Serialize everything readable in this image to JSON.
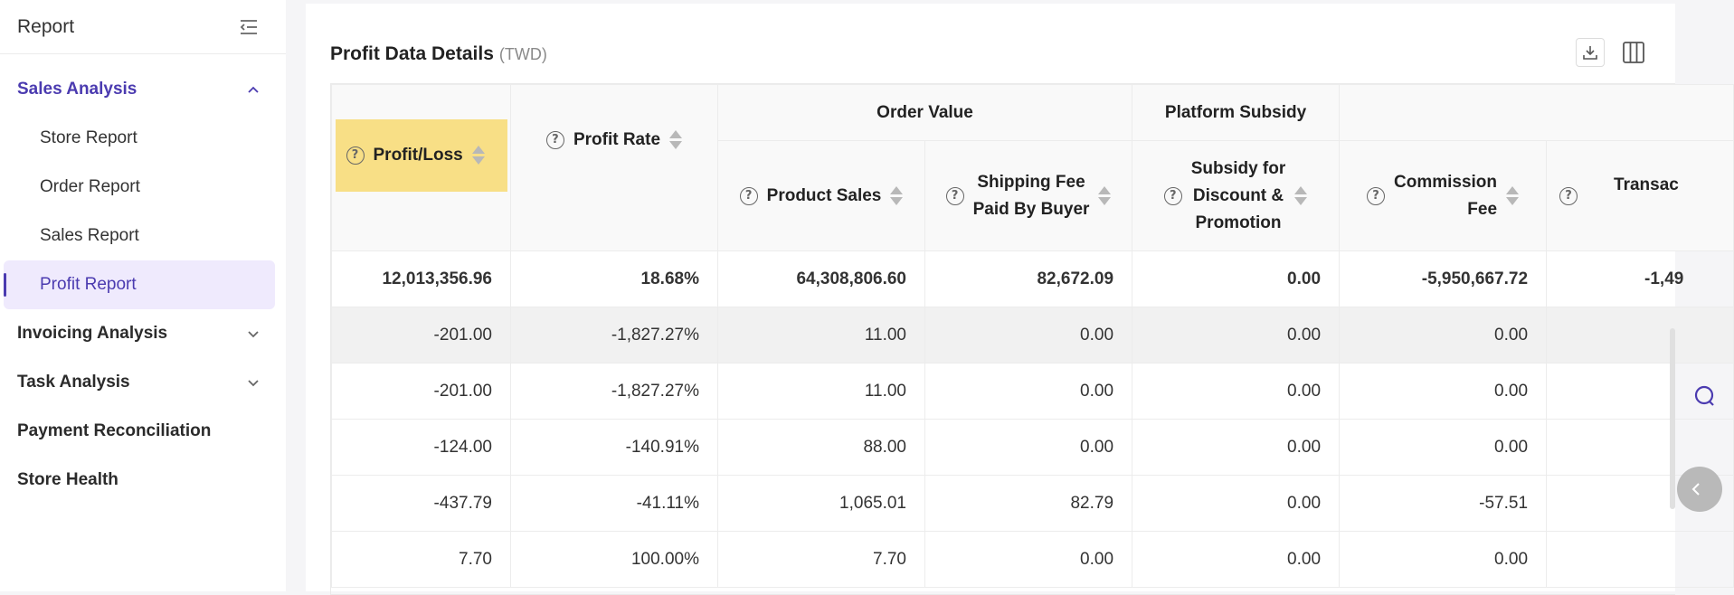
{
  "sidebar": {
    "title": "Report",
    "groups": [
      {
        "label": "Sales Analysis",
        "expanded": true,
        "items": [
          "Store Report",
          "Order Report",
          "Sales Report",
          "Profit Report"
        ],
        "selected": "Profit Report"
      },
      {
        "label": "Invoicing Analysis"
      },
      {
        "label": "Task Analysis"
      },
      {
        "label": "Payment Reconciliation"
      },
      {
        "label": "Store Health"
      }
    ]
  },
  "card": {
    "title": "Profit Data Details",
    "unit": "(TWD)"
  },
  "table": {
    "group_headers": {
      "order_value": "Order Value",
      "platform_subsidy": "Platform Subsidy"
    },
    "columns": {
      "profit_loss": "Profit/Loss",
      "profit_rate": "Profit Rate",
      "product_sales": "Product Sales",
      "shipping_fee_l1": "Shipping Fee",
      "shipping_fee_l2": "Paid By Buyer",
      "subsidy_l1": "Subsidy for",
      "subsidy_l2": "Discount &",
      "subsidy_l3": "Promotion",
      "commission_l1": "Commission",
      "commission_l2": "Fee",
      "transaction": "Transac"
    },
    "total_row": [
      "12,013,356.96",
      "18.68%",
      "64,308,806.60",
      "82,672.09",
      "0.00",
      "-5,950,667.72",
      "-1,49"
    ],
    "rows": [
      [
        "-201.00",
        "-1,827.27%",
        "11.00",
        "0.00",
        "0.00",
        "0.00",
        ""
      ],
      [
        "-201.00",
        "-1,827.27%",
        "11.00",
        "0.00",
        "0.00",
        "0.00",
        ""
      ],
      [
        "-124.00",
        "-140.91%",
        "88.00",
        "0.00",
        "0.00",
        "0.00",
        ""
      ],
      [
        "-437.79",
        "-41.11%",
        "1,065.01",
        "82.79",
        "0.00",
        "-57.51",
        ""
      ],
      [
        "7.70",
        "100.00%",
        "7.70",
        "0.00",
        "0.00",
        "0.00",
        ""
      ]
    ]
  },
  "colors": {
    "accent": "#4b3bb0",
    "highlight": "#f8df86",
    "selected_bg": "#efeafd"
  }
}
